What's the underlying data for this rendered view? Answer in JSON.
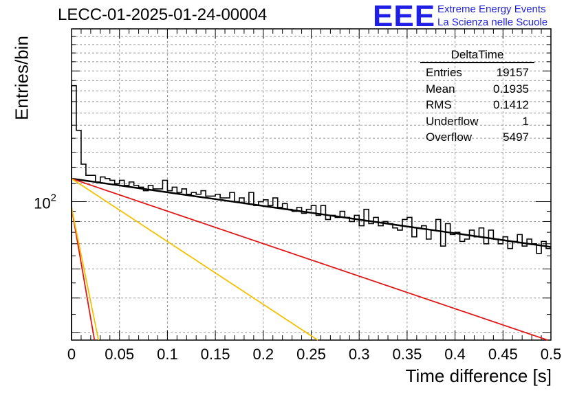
{
  "header": {
    "title": "LECC-01-2025-01-24-00004",
    "logo": "EEE",
    "logo_line1": "Extreme Energy Events",
    "logo_line2": "La Scienza nelle Scuole"
  },
  "stats_box": {
    "name": "DeltaTime",
    "rows": [
      {
        "label": "Entries",
        "value": "19157"
      },
      {
        "label": "Mean",
        "value": "0.1935"
      },
      {
        "label": "RMS",
        "value": "0.1412"
      },
      {
        "label": "Underflow",
        "value": "1"
      },
      {
        "label": "Overflow",
        "value": "5497"
      }
    ]
  },
  "chart_data": {
    "type": "line",
    "xlabel": "Time difference [s]",
    "ylabel": "Entries/bin",
    "xlim": [
      0,
      0.5
    ],
    "ylim": [
      48,
      250
    ],
    "yscale": "log",
    "grid": true,
    "x_ticks": [
      "0",
      "0.05",
      "0.1",
      "0.15",
      "0.2",
      "0.25",
      "0.3",
      "0.35",
      "0.4",
      "0.45",
      "0.5"
    ],
    "y_tick_label": {
      "base": "10",
      "exp": "2",
      "value": 100
    },
    "histogram": {
      "bin_width": 0.005,
      "color": "#000000",
      "values": [
        185,
        146,
        122,
        115,
        115,
        111,
        114,
        113,
        112,
        110,
        112,
        109,
        111,
        109,
        108,
        106,
        109,
        107,
        107,
        112,
        106,
        108,
        105,
        107,
        104,
        105,
        104,
        106,
        103,
        103,
        104,
        102,
        102,
        105,
        100,
        102,
        99,
        105,
        98,
        100,
        101,
        98,
        102,
        97,
        99,
        96,
        95,
        97,
        94,
        96,
        98,
        93,
        98,
        91,
        93,
        92,
        95,
        92,
        90,
        93,
        88,
        96,
        89,
        92,
        88,
        90,
        89,
        87,
        86,
        91,
        92,
        83,
        87,
        88,
        82,
        86,
        91,
        79,
        89,
        84,
        85,
        81,
        82,
        86,
        83,
        87,
        80,
        86,
        82,
        80,
        83,
        78,
        81,
        84,
        79,
        82,
        80,
        76,
        81,
        78
      ]
    },
    "series": [
      {
        "type": "exponential",
        "color": "#000000",
        "x0": 0.0,
        "y0": 113,
        "tau": 1.38
      },
      {
        "type": "exponential",
        "color": "#e01818",
        "x0": 0.0,
        "y0": 113,
        "tau": 0.58
      },
      {
        "type": "exponential",
        "color": "#f5c000",
        "x0": 0.0,
        "y0": 113,
        "tau": 0.3
      },
      {
        "type": "exponential",
        "color": "#e01818",
        "x0": 0.0,
        "y0": 97,
        "tau": 0.034
      },
      {
        "type": "exponential",
        "color": "#f5c000",
        "x0": 0.0,
        "y0": 97,
        "tau": 0.04
      }
    ]
  }
}
